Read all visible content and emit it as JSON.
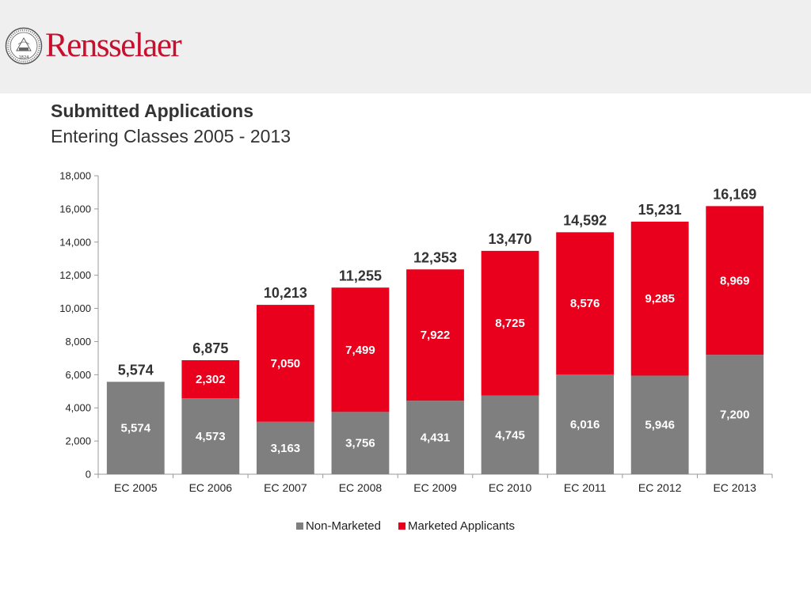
{
  "header": {
    "brand": "Rensselaer",
    "seal_text": "1824"
  },
  "colors": {
    "non_marketed": "#7f7f7f",
    "marketed": "#e8001c",
    "brand": "#c8102e"
  },
  "chart_data": {
    "type": "bar",
    "stacked": true,
    "title": "Submitted Applications",
    "subtitle": "Entering Classes 2005 - 2013",
    "categories": [
      "EC 2005",
      "EC 2006",
      "EC 2007",
      "EC 2008",
      "EC 2009",
      "EC 2010",
      "EC 2011",
      "EC 2012",
      "EC 2013"
    ],
    "series": [
      {
        "name": "Non-Marketed",
        "values": [
          5574,
          4573,
          3163,
          3756,
          4431,
          4745,
          6016,
          5946,
          7200
        ],
        "labels": [
          "5,574",
          "4,573",
          "3,163",
          "3,756",
          "4,431",
          "4,745",
          "6,016",
          "5,946",
          "7,200"
        ]
      },
      {
        "name": "Marketed Applicants",
        "values": [
          0,
          2302,
          7050,
          7499,
          7922,
          8725,
          8576,
          9285,
          8969
        ],
        "labels": [
          "",
          "2,302",
          "7,050",
          "7,499",
          "7,922",
          "8,725",
          "8,576",
          "9,285",
          "8,969"
        ]
      }
    ],
    "totals": [
      5574,
      6875,
      10213,
      11255,
      12353,
      13470,
      14592,
      15231,
      16169
    ],
    "total_labels": [
      "5,574",
      "6,875",
      "10,213",
      "11,255",
      "12,353",
      "13,470",
      "14,592",
      "15,231",
      "16,169"
    ],
    "ylim": [
      0,
      18000
    ],
    "yticks": [
      0,
      2000,
      4000,
      6000,
      8000,
      10000,
      12000,
      14000,
      16000,
      18000
    ],
    "ytick_labels": [
      "0",
      "2,000",
      "4,000",
      "6,000",
      "8,000",
      "10,000",
      "12,000",
      "14,000",
      "16,000",
      "18,000"
    ],
    "legend_position": "bottom",
    "grid": false
  }
}
